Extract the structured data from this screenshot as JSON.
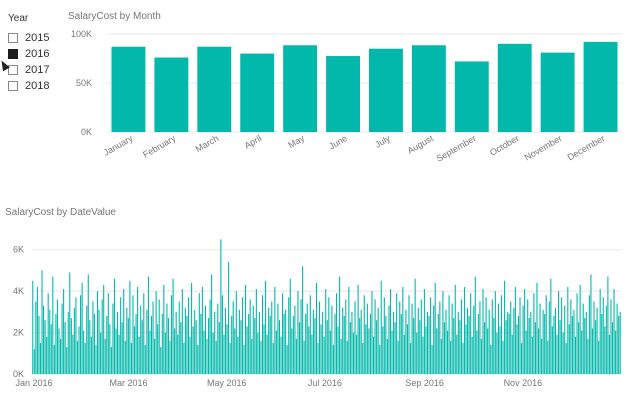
{
  "slicer": {
    "title": "Year",
    "items": [
      {
        "label": "2015",
        "selected": false
      },
      {
        "label": "2016",
        "selected": true
      },
      {
        "label": "2017",
        "selected": false
      },
      {
        "label": "2018",
        "selected": false
      }
    ]
  },
  "colors": {
    "bar": "#01B8AA",
    "grid": "#e8e8e8",
    "tick": "#777777"
  },
  "chart_data": [
    {
      "type": "bar",
      "title": "SalaryCost by Month",
      "categories": [
        "January",
        "February",
        "March",
        "April",
        "May",
        "June",
        "July",
        "August",
        "September",
        "October",
        "November",
        "December"
      ],
      "values": [
        87000,
        76000,
        87000,
        80000,
        88500,
        77500,
        85000,
        88500,
        72000,
        90000,
        81000,
        92000
      ],
      "ylim": [
        0,
        100000
      ],
      "yticks": [
        {
          "value": 0,
          "label": "0K"
        },
        {
          "value": 50000,
          "label": "50K"
        },
        {
          "value": 100000,
          "label": "100K"
        }
      ],
      "grid": true
    },
    {
      "type": "bar",
      "title": "SalaryCost by DateValue",
      "x_start": "2016-01-01",
      "x_end": "2016-12-31",
      "ylim": [
        0,
        7000
      ],
      "yticks": [
        {
          "value": 0,
          "label": "0K"
        },
        {
          "value": 2000,
          "label": "2K"
        },
        {
          "value": 4000,
          "label": "4K"
        },
        {
          "value": 6000,
          "label": "6K"
        }
      ],
      "xticks": [
        {
          "date": "2016-01-01",
          "label": "Jan 2016"
        },
        {
          "date": "2016-03-01",
          "label": "Mar 2016"
        },
        {
          "date": "2016-05-01",
          "label": "May 2016"
        },
        {
          "date": "2016-07-01",
          "label": "Jul 2016"
        },
        {
          "date": "2016-09-01",
          "label": "Sep 2016"
        },
        {
          "date": "2016-11-01",
          "label": "Nov 2016"
        }
      ],
      "values": [
        4500,
        1200,
        3500,
        4200,
        2800,
        1500,
        5000,
        3300,
        2600,
        1800,
        3900,
        3100,
        2400,
        4700,
        1400,
        2900,
        3600,
        2200,
        1700,
        3400,
        4100,
        2500,
        1300,
        3000,
        4900,
        2700,
        1900,
        3200,
        3700,
        1600,
        2300,
        3800,
        4400,
        2100,
        1500,
        3300,
        4800,
        2600,
        1800,
        3500,
        2900,
        1400,
        4000,
        3100,
        2000,
        3600,
        4300,
        1700,
        2800,
        3900,
        2400,
        1300,
        3400,
        4600,
        2200,
        3000,
        1900,
        3700,
        2500,
        4100,
        1600,
        3200,
        2700,
        4500,
        1500,
        3800,
        2300,
        2900,
        4200,
        1800,
        3300,
        2600,
        3900,
        1400,
        3100,
        4700,
        2100,
        2800,
        3500,
        1700,
        4000,
        2400,
        3600,
        1300,
        2900,
        4300,
        2000,
        3400,
        2700,
        1600,
        3800,
        4600,
        2200,
        3000,
        1900,
        3500,
        2500,
        4100,
        1500,
        3200,
        2800,
        3700,
        1800,
        4400,
        2300,
        3100,
        2600,
        1400,
        3900,
        2900,
        4200,
        2100,
        3300,
        1700,
        2700,
        3600,
        4800,
        2000,
        3000,
        1600,
        3400,
        2500,
        6500,
        3800,
        1900,
        3200,
        2400,
        5400,
        1500,
        2800,
        3500,
        2200,
        4000,
        1800,
        3100,
        2600,
        3700,
        1400,
        4300,
        2300,
        2900,
        3600,
        1700,
        3300,
        2700,
        4100,
        2000,
        3000,
        1600,
        3800,
        2400,
        4500,
        1900,
        3200,
        2800,
        3500,
        1500,
        4200,
        2100,
        3400,
        2600,
        1800,
        3900,
        2900,
        3100,
        1400,
        3700,
        4600,
        2200,
        2800,
        3300,
        1700,
        4000,
        2500,
        3600,
        5200,
        1600,
        2900,
        3400,
        2300,
        3800,
        1900,
        3100,
        2700,
        4400,
        1500,
        3500,
        2400,
        3000,
        1800,
        4100,
        2600,
        3700,
        2100,
        3300,
        1400,
        2900,
        3900,
        2300,
        4700,
        1700,
        3200,
        2800,
        3600,
        1600,
        4200,
        2500,
        3000,
        2000,
        3500,
        1900,
        4300,
        2700,
        3100,
        1500,
        3800,
        2400,
        3400,
        2200,
        2900,
        4000,
        1800,
        3600,
        2600,
        3200,
        1400,
        4500,
        2300,
        3700,
        2800,
        1700,
        3300,
        4100,
        2100,
        3000,
        2500,
        3900,
        1600,
        3500,
        2900,
        4200,
        1900,
        3100,
        2400,
        3800,
        1500,
        3400,
        2700,
        4600,
        2000,
        3200,
        2600,
        3600,
        1800,
        4100,
        2300,
        3000,
        2800,
        3700,
        1400,
        3300,
        4400,
        2200,
        2900,
        3500,
        1700,
        4000,
        2500,
        3100,
        2100,
        3800,
        1600,
        3400,
        2700,
        4300,
        1900,
        3000,
        2600,
        3600,
        1500,
        4200,
        2400,
        3200,
        2800,
        3900,
        1800,
        3300,
        4700,
        2100,
        2900,
        3500,
        1700,
        4100,
        2500,
        3700,
        2200,
        3100,
        1400,
        3600,
        2700,
        4000,
        2000,
        3400,
        2300,
        3800,
        1600,
        4500,
        2600,
        3000,
        2900,
        3500,
        1900,
        3200,
        4200,
        2400,
        2800,
        3700,
        1500,
        3300,
        4100,
        2100,
        3600,
        2700,
        3000,
        1800,
        3900,
        2500,
        4400,
        2200,
        3400,
        1700,
        3100,
        2900,
        3800,
        1600,
        3500,
        4600,
        2300,
        2800,
        3200,
        1900,
        4000,
        2600,
        3700,
        2000,
        3300,
        1500,
        4200,
        2400,
        3600,
        2800,
        3100,
        1800,
        3900,
        2500,
        4300,
        2100,
        3400,
        2700,
        3000,
        1700,
        3800,
        4800,
        2200,
        3500,
        2600,
        3200,
        1600,
        4100,
        2900,
        3700,
        2300,
        3300,
        4700,
        1900,
        3600,
        2500,
        4100,
        2100,
        3400,
        2800,
        3000
      ]
    }
  ]
}
